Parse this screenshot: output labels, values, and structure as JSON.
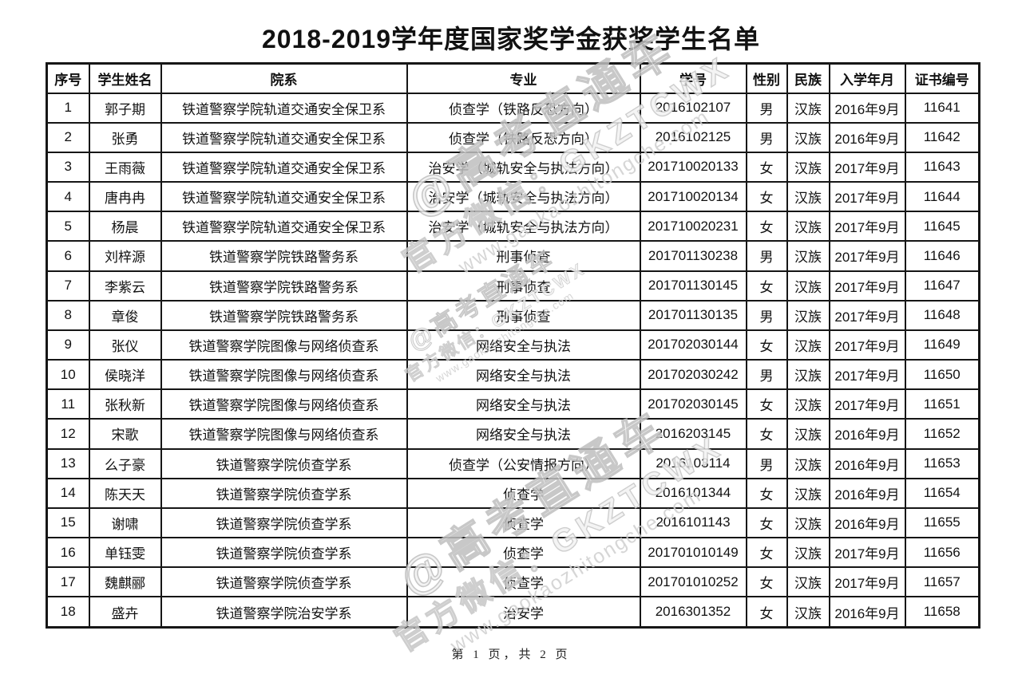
{
  "title": "2018-2019学年度国家奖学金获奖学生名单",
  "table": {
    "headers": [
      "序号",
      "学生姓名",
      "院系",
      "专业",
      "学号",
      "性别",
      "民族",
      "入学年月",
      "证书编号"
    ],
    "column_keys": [
      "index",
      "student-name",
      "department",
      "major",
      "student-id",
      "gender",
      "ethnicity",
      "enrollment-date",
      "certificate-no"
    ],
    "rows": [
      [
        "1",
        "郭子期",
        "铁道警察学院轨道交通安全保卫系",
        "侦查学（铁路反恐方向）",
        "2016102107",
        "男",
        "汉族",
        "2016年9月",
        "11641"
      ],
      [
        "2",
        "张勇",
        "铁道警察学院轨道交通安全保卫系",
        "侦查学（铁路反恐方向）",
        "2016102125",
        "男",
        "汉族",
        "2016年9月",
        "11642"
      ],
      [
        "3",
        "王雨薇",
        "铁道警察学院轨道交通安全保卫系",
        "治安学（城轨安全与执法方向）",
        "201710020133",
        "女",
        "汉族",
        "2017年9月",
        "11643"
      ],
      [
        "4",
        "唐冉冉",
        "铁道警察学院轨道交通安全保卫系",
        "治安学（城轨安全与执法方向）",
        "201710020134",
        "女",
        "汉族",
        "2017年9月",
        "11644"
      ],
      [
        "5",
        "杨晨",
        "铁道警察学院轨道交通安全保卫系",
        "治安学（城轨安全与执法方向）",
        "201710020231",
        "女",
        "汉族",
        "2017年9月",
        "11645"
      ],
      [
        "6",
        "刘梓源",
        "铁道警察学院铁路警务系",
        "刑事侦查",
        "201701130238",
        "男",
        "汉族",
        "2017年9月",
        "11646"
      ],
      [
        "7",
        "李紫云",
        "铁道警察学院铁路警务系",
        "刑事侦查",
        "201701130145",
        "女",
        "汉族",
        "2017年9月",
        "11647"
      ],
      [
        "8",
        "章俊",
        "铁道警察学院铁路警务系",
        "刑事侦查",
        "201701130135",
        "男",
        "汉族",
        "2017年9月",
        "11648"
      ],
      [
        "9",
        "张仪",
        "铁道警察学院图像与网络侦查系",
        "网络安全与执法",
        "201702030144",
        "女",
        "汉族",
        "2017年9月",
        "11649"
      ],
      [
        "10",
        "侯晓洋",
        "铁道警察学院图像与网络侦查系",
        "网络安全与执法",
        "201702030242",
        "男",
        "汉族",
        "2017年9月",
        "11650"
      ],
      [
        "11",
        "张秋新",
        "铁道警察学院图像与网络侦查系",
        "网络安全与执法",
        "201702030145",
        "女",
        "汉族",
        "2017年9月",
        "11651"
      ],
      [
        "12",
        "宋歌",
        "铁道警察学院图像与网络侦查系",
        "网络安全与执法",
        "2016203145",
        "女",
        "汉族",
        "2016年9月",
        "11652"
      ],
      [
        "13",
        "么子豪",
        "铁道警察学院侦查学系",
        "侦查学（公安情报方向）",
        "2016103114",
        "男",
        "汉族",
        "2016年9月",
        "11653"
      ],
      [
        "14",
        "陈天天",
        "铁道警察学院侦查学系",
        "侦查学",
        "2016101344",
        "女",
        "汉族",
        "2016年9月",
        "11654"
      ],
      [
        "15",
        "谢啸",
        "铁道警察学院侦查学系",
        "侦查学",
        "2016101143",
        "女",
        "汉族",
        "2016年9月",
        "11655"
      ],
      [
        "16",
        "单钰雯",
        "铁道警察学院侦查学系",
        "侦查学",
        "201701010149",
        "女",
        "汉族",
        "2017年9月",
        "11656"
      ],
      [
        "17",
        "魏麒郦",
        "铁道警察学院侦查学系",
        "侦查学",
        "201701010252",
        "女",
        "汉族",
        "2017年9月",
        "11657"
      ],
      [
        "18",
        "盛卉",
        "铁道警察学院治安学系",
        "治安学",
        "2016301352",
        "女",
        "汉族",
        "2016年9月",
        "11658"
      ]
    ]
  },
  "footer": {
    "page_text": "第 1 页，共 2 页"
  },
  "watermark": {
    "line1": "@高考直通车",
    "line2": "官方微信：GKZTCWX",
    "line3": "www.gaokaozhitongche.com",
    "color": "#c6c6c6"
  }
}
